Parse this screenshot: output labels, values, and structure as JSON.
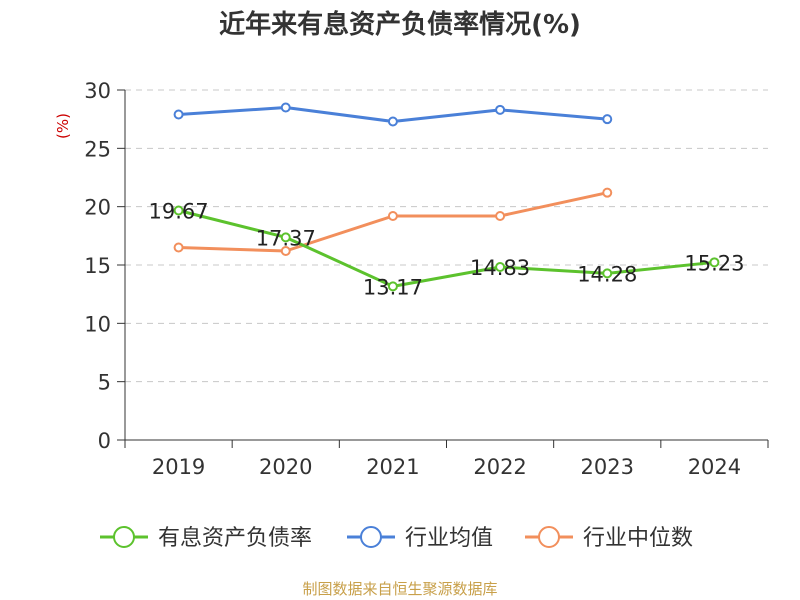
{
  "chart_data": {
    "type": "line",
    "title": "近年来有息资产负债率情况(%)",
    "ylabel": "(%)",
    "categories": [
      "2019",
      "2020",
      "2021",
      "2022",
      "2023",
      "2024"
    ],
    "y_ticks": [
      "0",
      "5",
      "10",
      "15",
      "20",
      "25",
      "30"
    ],
    "ylim": [
      0,
      30
    ],
    "grid": true,
    "legend_position": "bottom",
    "series": [
      {
        "name": "有息资产负债率",
        "color": "#5cc22d",
        "values": [
          19.67,
          17.37,
          13.17,
          14.83,
          14.28,
          15.23
        ],
        "labels": [
          "19.67",
          "17.37",
          "13.17",
          "14.83",
          "14.28",
          "15.23"
        ]
      },
      {
        "name": "行业均值",
        "color": "#4a80d8",
        "values": [
          27.9,
          28.5,
          27.3,
          28.3,
          27.5,
          null
        ]
      },
      {
        "name": "行业中位数",
        "color": "#f28f5c",
        "values": [
          16.5,
          16.2,
          19.2,
          19.2,
          21.2,
          null
        ]
      }
    ],
    "source": "制图数据来自恒生聚源数据库"
  }
}
